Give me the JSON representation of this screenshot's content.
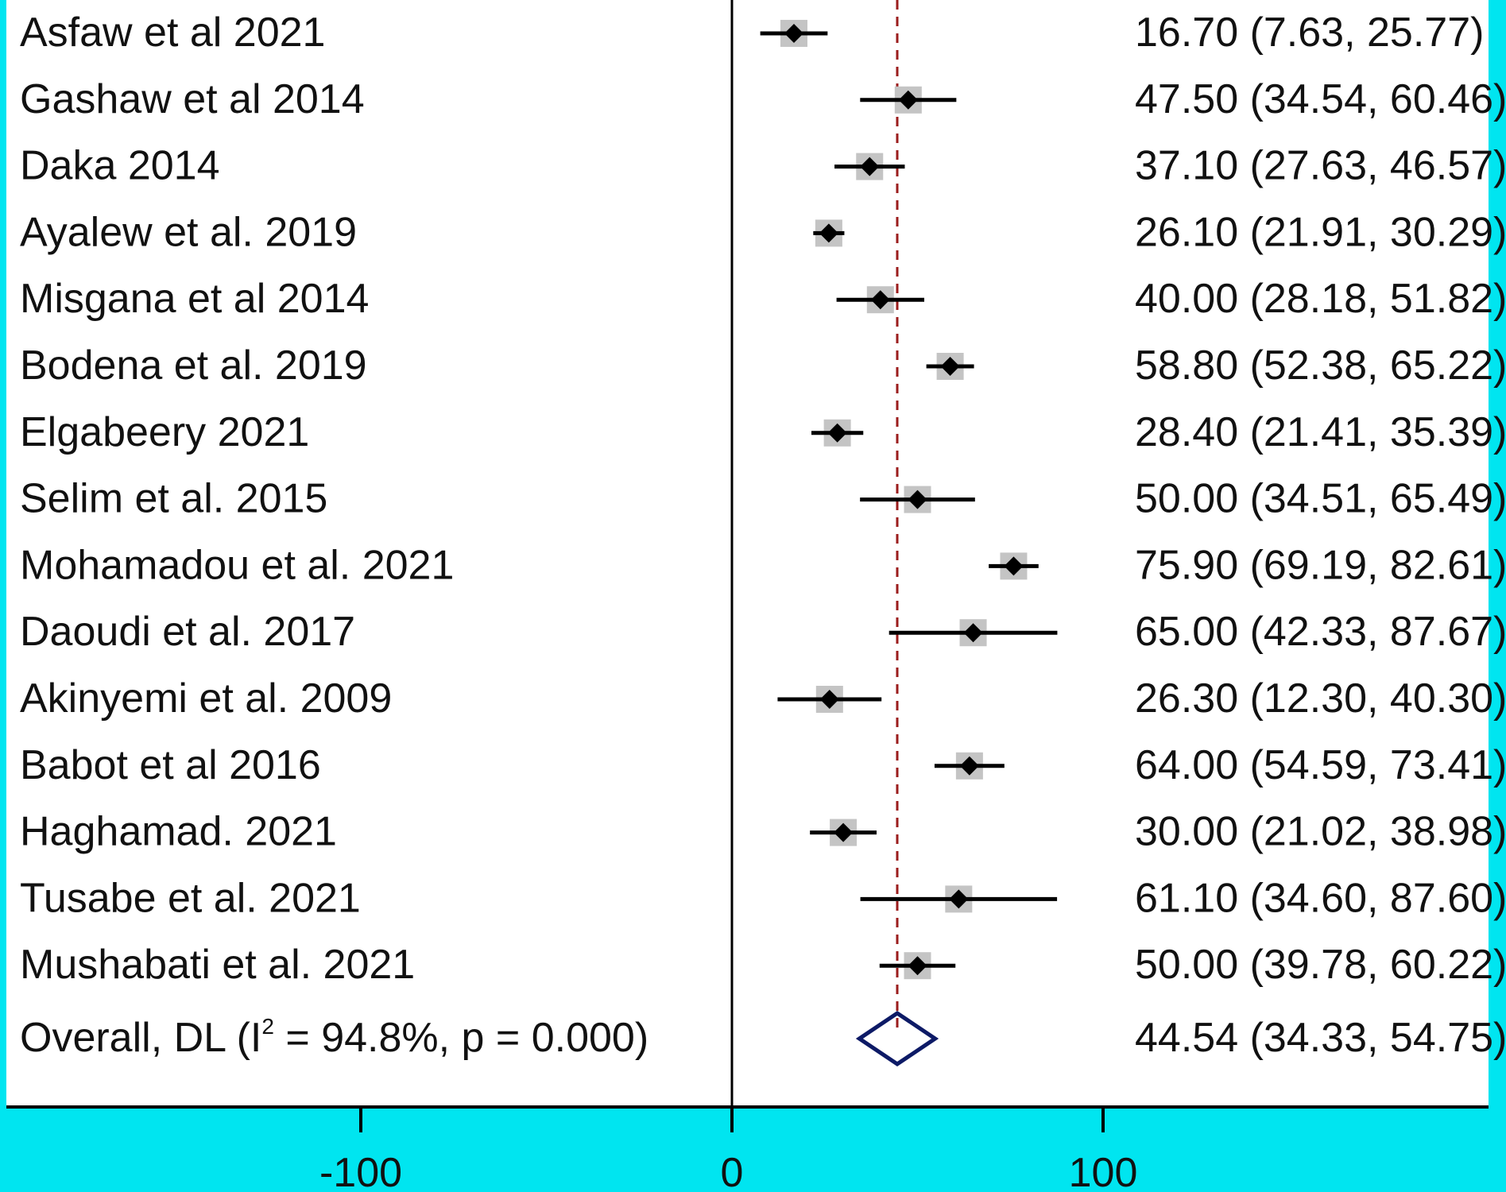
{
  "chart_data": {
    "type": "forest",
    "title": "",
    "xlabel": "",
    "ylabel": "",
    "xlim": [
      -200,
      200
    ],
    "xticks": [
      -100,
      0,
      100
    ],
    "xtick_labels": [
      "-100",
      "0",
      "100"
    ],
    "grid": false,
    "reference_line": 44.54,
    "studies": [
      {
        "label": "Asfaw et al 2021",
        "es": 16.7,
        "lo": 7.63,
        "hi": 25.77,
        "ci_text": "16.70 (7.63, 25.77)"
      },
      {
        "label": "Gashaw et al 2014",
        "es": 47.5,
        "lo": 34.54,
        "hi": 60.46,
        "ci_text": "47.50 (34.54, 60.46)"
      },
      {
        "label": "Daka 2014",
        "es": 37.1,
        "lo": 27.63,
        "hi": 46.57,
        "ci_text": "37.10 (27.63, 46.57)"
      },
      {
        "label": "Ayalew et al.  2019",
        "es": 26.1,
        "lo": 21.91,
        "hi": 30.29,
        "ci_text": "26.10 (21.91, 30.29)"
      },
      {
        "label": "Misgana et al  2014",
        "es": 40.0,
        "lo": 28.18,
        "hi": 51.82,
        "ci_text": "40.00 (28.18, 51.82)"
      },
      {
        "label": "Bodena et al. 2019",
        "es": 58.8,
        "lo": 52.38,
        "hi": 65.22,
        "ci_text": "58.80 (52.38, 65.22)"
      },
      {
        "label": "Elgabeery 2021",
        "es": 28.4,
        "lo": 21.41,
        "hi": 35.39,
        "ci_text": "28.40 (21.41, 35.39)"
      },
      {
        "label": "Selim et al. 2015",
        "es": 50.0,
        "lo": 34.51,
        "hi": 65.49,
        "ci_text": "50.00 (34.51, 65.49)"
      },
      {
        "label": "Mohamadou et al. 2021",
        "es": 75.9,
        "lo": 69.19,
        "hi": 82.61,
        "ci_text": "75.90 (69.19, 82.61)"
      },
      {
        "label": "Daoudi et al. 2017",
        "es": 65.0,
        "lo": 42.33,
        "hi": 87.67,
        "ci_text": "65.00 (42.33, 87.67)"
      },
      {
        "label": "Akinyemi et al. 2009",
        "es": 26.3,
        "lo": 12.3,
        "hi": 40.3,
        "ci_text": "26.30 (12.30, 40.30)"
      },
      {
        "label": "Babot et al 2016",
        "es": 64.0,
        "lo": 54.59,
        "hi": 73.41,
        "ci_text": "64.00 (54.59, 73.41)"
      },
      {
        "label": "Haghamad. 2021",
        "es": 30.0,
        "lo": 21.02,
        "hi": 38.98,
        "ci_text": "30.00 (21.02, 38.98)"
      },
      {
        "label": "Tusabe et al. 2021",
        "es": 61.1,
        "lo": 34.6,
        "hi": 87.6,
        "ci_text": "61.10 (34.60, 87.60)"
      },
      {
        "label": "Mushabati et al. 2021",
        "es": 50.0,
        "lo": 39.78,
        "hi": 60.22,
        "ci_text": "50.00 (39.78, 60.22)"
      }
    ],
    "overall": {
      "label_prefix": "Overall, DL (I",
      "label_sup": "2",
      "label_suffix": " = 94.8%, p = 0.000)",
      "es": 44.54,
      "lo": 34.33,
      "hi": 54.75,
      "ci_text": "44.54 (34.33, 54.75)"
    },
    "colors": {
      "background": "#00e5f0",
      "panel": "#ffffff",
      "marker": "#000000",
      "weight_box": "#c4c4c4",
      "ci_line": "#000000",
      "reference_line": "#9b1c1c",
      "overall_diamond": "#0d1a66",
      "axis": "#000000"
    }
  }
}
